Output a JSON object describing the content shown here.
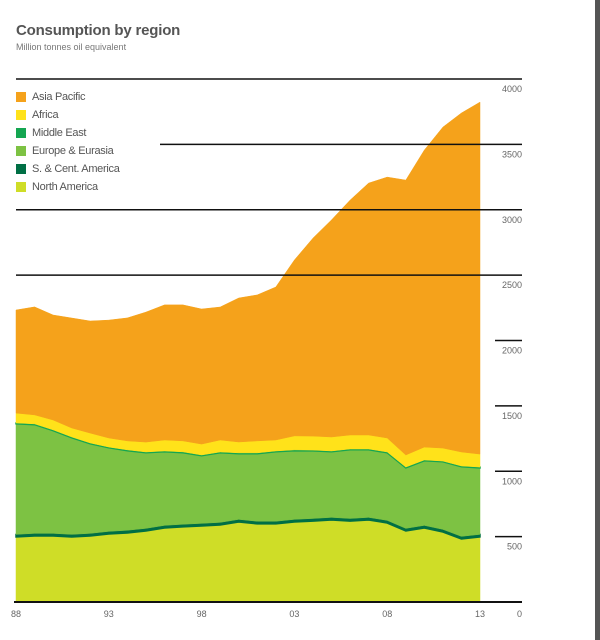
{
  "chart_data": {
    "type": "area",
    "stacked": true,
    "title": "Consumption by region",
    "subtitle": "Million tonnes oil equivalent",
    "ylim": [
      0,
      4000
    ],
    "yticks": [
      "0",
      "500",
      "1000",
      "1500",
      "2000",
      "2500",
      "3000",
      "3500",
      "4000"
    ],
    "xtick_labels": [
      "88",
      "93",
      "98",
      "03",
      "08",
      "13"
    ],
    "x": [
      1988,
      1989,
      1990,
      1991,
      1992,
      1993,
      1994,
      1995,
      1996,
      1997,
      1998,
      1999,
      2000,
      2001,
      2002,
      2003,
      2004,
      2005,
      2006,
      2007,
      2008,
      2009,
      2010,
      2011,
      2012,
      2013
    ],
    "legend_position": "top-left",
    "series": [
      {
        "name": "North America",
        "color": "#CFDD27",
        "values": [
          497,
          505,
          505,
          497,
          505,
          520,
          528,
          543,
          566,
          574,
          581,
          589,
          612,
          597,
          597,
          612,
          619,
          627,
          619,
          627,
          604,
          543,
          566,
          535,
          482,
          497
        ]
      },
      {
        "name": "S. & Cent. America",
        "color": "#006F45",
        "values": [
          20,
          20,
          20,
          20,
          20,
          20,
          20,
          20,
          20,
          20,
          20,
          20,
          20,
          20,
          20,
          20,
          20,
          20,
          20,
          20,
          20,
          20,
          20,
          20,
          20,
          20
        ]
      },
      {
        "name": "Europe & Eurasia",
        "color": "#7DC243",
        "values": [
          846,
          831,
          785,
          739,
          685,
          639,
          609,
          578,
          563,
          548,
          517,
          532,
          502,
          517,
          532,
          525,
          517,
          502,
          525,
          517,
          517,
          463,
          494,
          517,
          532,
          509
        ]
      },
      {
        "name": "Middle East",
        "color": "#14A651",
        "values": [
          6,
          6,
          6,
          6,
          6,
          6,
          6,
          6,
          6,
          6,
          6,
          6,
          6,
          6,
          6,
          6,
          6,
          6,
          6,
          6,
          6,
          6,
          6,
          6,
          6,
          6
        ]
      },
      {
        "name": "Africa",
        "color": "#FFE21A",
        "values": [
          76,
          69,
          76,
          69,
          76,
          69,
          69,
          76,
          84,
          84,
          84,
          92,
          84,
          92,
          84,
          107,
          107,
          107,
          107,
          107,
          107,
          92,
          99,
          99,
          107,
          99
        ]
      },
      {
        "name": "Asia Pacific",
        "color": "#F5A21B",
        "values": [
          788,
          826,
          803,
          841,
          857,
          902,
          941,
          994,
          1033,
          1040,
          1033,
          1017,
          1101,
          1117,
          1170,
          1346,
          1514,
          1660,
          1797,
          1927,
          1996,
          2103,
          2271,
          2455,
          2593,
          2692
        ]
      }
    ],
    "legend_order": [
      "Asia Pacific",
      "Africa",
      "Middle East",
      "Europe & Eurasia",
      "S. & Cent. America",
      "North America"
    ]
  }
}
